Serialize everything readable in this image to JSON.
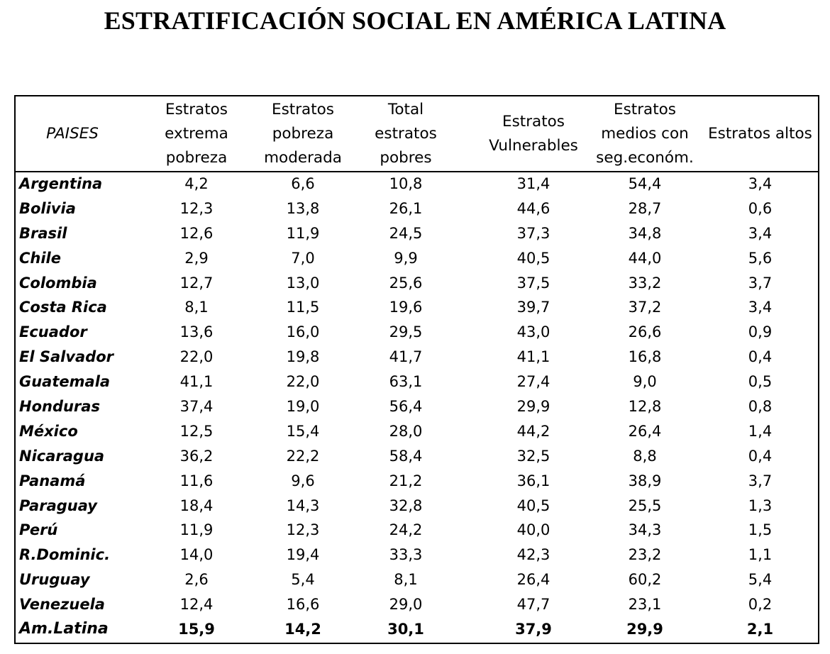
{
  "title": "ESTRATIFICACIÓN SOCIAL EN AMÉRICA LATINA",
  "table": {
    "headers": [
      "PAISES",
      "Estratos\nextrema\npobreza",
      "Estratos\npobreza\nmoderada",
      "Total\nestratos\npobres",
      "Estratos\nVulnerables",
      "Estratos\nmedios con\nseg.económ.",
      "Estratos altos"
    ],
    "rows": [
      {
        "country": "Argentina",
        "values": [
          "4,2",
          "6,6",
          "10,8",
          "31,4",
          "54,4",
          "3,4"
        ]
      },
      {
        "country": "Bolivia",
        "values": [
          "12,3",
          "13,8",
          "26,1",
          "44,6",
          "28,7",
          "0,6"
        ]
      },
      {
        "country": "Brasil",
        "values": [
          "12,6",
          "11,9",
          "24,5",
          "37,3",
          "34,8",
          "3,4"
        ]
      },
      {
        "country": "Chile",
        "values": [
          "2,9",
          "7,0",
          "9,9",
          "40,5",
          "44,0",
          "5,6"
        ]
      },
      {
        "country": "Colombia",
        "values": [
          "12,7",
          "13,0",
          "25,6",
          "37,5",
          "33,2",
          "3,7"
        ]
      },
      {
        "country": "Costa Rica",
        "values": [
          "8,1",
          "11,5",
          "19,6",
          "39,7",
          "37,2",
          "3,4"
        ]
      },
      {
        "country": "Ecuador",
        "values": [
          "13,6",
          "16,0",
          "29,5",
          "43,0",
          "26,6",
          "0,9"
        ]
      },
      {
        "country": "El Salvador",
        "values": [
          "22,0",
          "19,8",
          "41,7",
          "41,1",
          "16,8",
          "0,4"
        ]
      },
      {
        "country": "Guatemala",
        "values": [
          "41,1",
          "22,0",
          "63,1",
          "27,4",
          "9,0",
          "0,5"
        ]
      },
      {
        "country": "Honduras",
        "values": [
          "37,4",
          "19,0",
          "56,4",
          "29,9",
          "12,8",
          "0,8"
        ]
      },
      {
        "country": "México",
        "values": [
          "12,5",
          "15,4",
          "28,0",
          "44,2",
          "26,4",
          "1,4"
        ]
      },
      {
        "country": "Nicaragua",
        "values": [
          "36,2",
          "22,2",
          "58,4",
          "32,5",
          "8,8",
          "0,4"
        ]
      },
      {
        "country": "Panamá",
        "values": [
          "11,6",
          "9,6",
          "21,2",
          "36,1",
          "38,9",
          "3,7"
        ]
      },
      {
        "country": "Paraguay",
        "values": [
          "18,4",
          "14,3",
          "32,8",
          "40,5",
          "25,5",
          "1,3"
        ]
      },
      {
        "country": "Perú",
        "values": [
          "11,9",
          "12,3",
          "24,2",
          "40,0",
          "34,3",
          "1,5"
        ]
      },
      {
        "country": "R.Dominic.",
        "values": [
          "14,0",
          "19,4",
          "33,3",
          "42,3",
          "23,2",
          "1,1"
        ]
      },
      {
        "country": "Uruguay",
        "values": [
          "2,6",
          "5,4",
          "8,1",
          "26,4",
          "60,2",
          "5,4"
        ]
      },
      {
        "country": "Venezuela",
        "values": [
          "12,4",
          "16,6",
          "29,0",
          "47,7",
          "23,1",
          "0,2"
        ]
      }
    ],
    "total": {
      "country": "Am.Latina",
      "values": [
        "15,9",
        "14,2",
        "30,1",
        "37,9",
        "29,9",
        "2,1"
      ]
    }
  }
}
